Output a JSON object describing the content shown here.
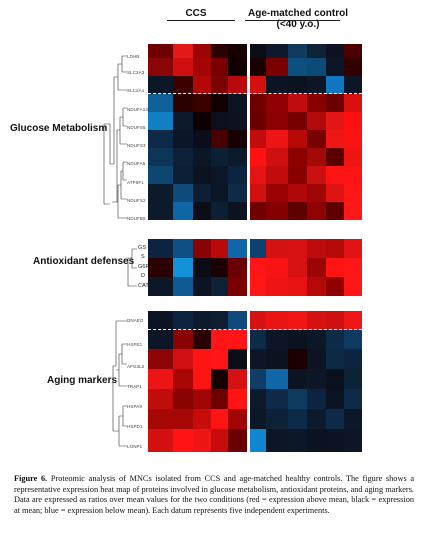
{
  "figure": {
    "column_headers": [
      "CCS",
      "Age-matched control\n(<40 y.o.)"
    ],
    "sections": [
      {
        "label": "Glucose Metabolism",
        "genes": [
          "LDHB",
          "SLC2A3",
          "SLC2A1",
          "NDUFA13",
          "NDUFS5",
          "NDUFS3",
          "NDUFA5",
          "ATP5F1",
          "NDUFS2",
          "NDUFB6"
        ],
        "rows": [
          [
            "#6e0000",
            "#e3191a",
            "#9c0505",
            "#2a0000",
            "#180000",
            "#0b0e18",
            "#10192c",
            "#0f3a5e",
            "#0f2236",
            "#0d1220",
            "#4a0000"
          ],
          [
            "#8a0505",
            "#ce1010",
            "#a40505",
            "#7a0000",
            "#120000",
            "#1a0000",
            "#7a0000",
            "#0c5080",
            "#0d4a78",
            "#0c1626",
            "#310000"
          ],
          [
            "#0c1828",
            "#3c0000",
            "#b30808",
            "#7a0303",
            "#b80a0a",
            "#d21010",
            "#0c1424",
            "#0b1220",
            "#0c1624",
            "#1177c0",
            "#0c1626"
          ],
          [
            "#0f5f99",
            "#2a0000",
            "#3a0000",
            "#120000",
            "#0c1422",
            "#6e0000",
            "#900000",
            "#c00c0c",
            "#8a0000",
            "#6a0000",
            "#d81010"
          ],
          [
            "#107fc4",
            "#0c1a2c",
            "#0e0000",
            "#0b101c",
            "#0c1220",
            "#6a0000",
            "#8d0000",
            "#750000",
            "#b00a0a",
            "#e21616",
            "#ff1010"
          ],
          [
            "#0d2a48",
            "#0c1628",
            "#0b0e1a",
            "#4a0000",
            "#180000",
            "#c00c0c",
            "#ee1515",
            "#b80909",
            "#780000",
            "#ef1616",
            "#fb1313"
          ],
          [
            "#0d3558",
            "#0d2238",
            "#0b1626",
            "#0c2034",
            "#0c1a2c",
            "#ff1212",
            "#d01010",
            "#8c0000",
            "#a50808",
            "#5a0000",
            "#ef1515"
          ],
          [
            "#0e4670",
            "#0c1e34",
            "#0b1220",
            "#0c1828",
            "#0d2440",
            "#e51414",
            "#c20c0c",
            "#880000",
            "#c81010",
            "#ff1414",
            "#ff1414"
          ],
          [
            "#0c1a2c",
            "#0f4b7a",
            "#0c1e34",
            "#0b1626",
            "#0d2a46",
            "#d21010",
            "#9a0303",
            "#b00808",
            "#a00606",
            "#e01313",
            "#ff1616"
          ],
          [
            "#0c1a2c",
            "#1065a6",
            "#0b0e18",
            "#0c2034",
            "#0b1220",
            "#700000",
            "#850000",
            "#5c0000",
            "#900303",
            "#5e0000",
            "#ff1818"
          ]
        ]
      },
      {
        "label": "Antioxidant defenses",
        "genes": [
          "GS",
          "S",
          "G6P",
          "D",
          "CAT"
        ],
        "rows": [
          [
            "#0d2440",
            "#0f4f84",
            "#8a0303",
            "#b80a0a",
            "#1066a8",
            "#0e4070",
            "#d51212",
            "#d81212",
            "#bd0c0c",
            "#b50a0a",
            "#e01414"
          ],
          [
            "#2a0000",
            "#1390d8",
            "#0b0c14",
            "#1a0000",
            "#6a0000",
            "#ff1515",
            "#f81414",
            "#d81212",
            "#9c0505",
            "#ff1414",
            "#ff1616"
          ],
          [
            "#0c1828",
            "#0f5a94",
            "#0c1424",
            "#0d2236",
            "#7a0000",
            "#ff1616",
            "#ec1414",
            "#e71313",
            "#b50909",
            "#900000",
            "#ff1616"
          ]
        ]
      },
      {
        "label": "Aging markers",
        "genes": [
          "DNAEO",
          "HSPE1",
          "AFG3L2",
          "TRAP1",
          "HSPA9",
          "HSPD1",
          "LONP1"
        ],
        "rows": [
          [
            "#0c1424",
            "#0d2440",
            "#0c1a2c",
            "#0d1e34",
            "#0f4a7c",
            "#d51111",
            "#ea1414",
            "#f21515",
            "#d41212",
            "#ce1010",
            "#ef1616"
          ],
          [
            "#0c1626",
            "#8a0303",
            "#2a0000",
            "#ff1515",
            "#ff1515",
            "#0d2a48",
            "#0c1626",
            "#0b1220",
            "#0c1828",
            "#0d2a48",
            "#0f3a60"
          ],
          [
            "#8f0505",
            "#d11111",
            "#ff1313",
            "#ff1515",
            "#0b0e18",
            "#0c1626",
            "#0b1220",
            "#1a0000",
            "#0c1424",
            "#0d2a44",
            "#0d2440"
          ],
          [
            "#ec1414",
            "#a80707",
            "#ff1414",
            "#140000",
            "#d51212",
            "#0f3d68",
            "#1066a8",
            "#0c1424",
            "#0c1626",
            "#0b101c",
            "#0d2236"
          ],
          [
            "#c10c0c",
            "#8a0303",
            "#a00606",
            "#700000",
            "#ff1313",
            "#0c1a2c",
            "#0d2a48",
            "#0f3a60",
            "#0d2440",
            "#0c1424",
            "#0d2a48"
          ],
          [
            "#a60707",
            "#a80707",
            "#c80c0c",
            "#ff1414",
            "#a00606",
            "#0c1828",
            "#0d2236",
            "#0d2a48",
            "#0c1a2c",
            "#0d2a48",
            "#0c1828"
          ],
          [
            "#d31111",
            "#ff1313",
            "#ee1515",
            "#c80c0c",
            "#6a0000",
            "#1086d0",
            "#0c1626",
            "#0c1828",
            "#0b1220",
            "#0c1424",
            "#0c1626"
          ]
        ]
      }
    ],
    "caption": {
      "lead": "Figure 6.",
      "body": " Proteomic analysis of MNCs isolated from CCS and age-matched healthy controls. The figure shows a representative expression heat map of proteins involved in glucose metabolism, antioxidant proteins, and aging markers. Data are expressed as ratios over mean values for the two conditions (red = expression above mean, black = expression at mean; blue = expression below mean). Each datum represents five independent experiments."
    }
  }
}
